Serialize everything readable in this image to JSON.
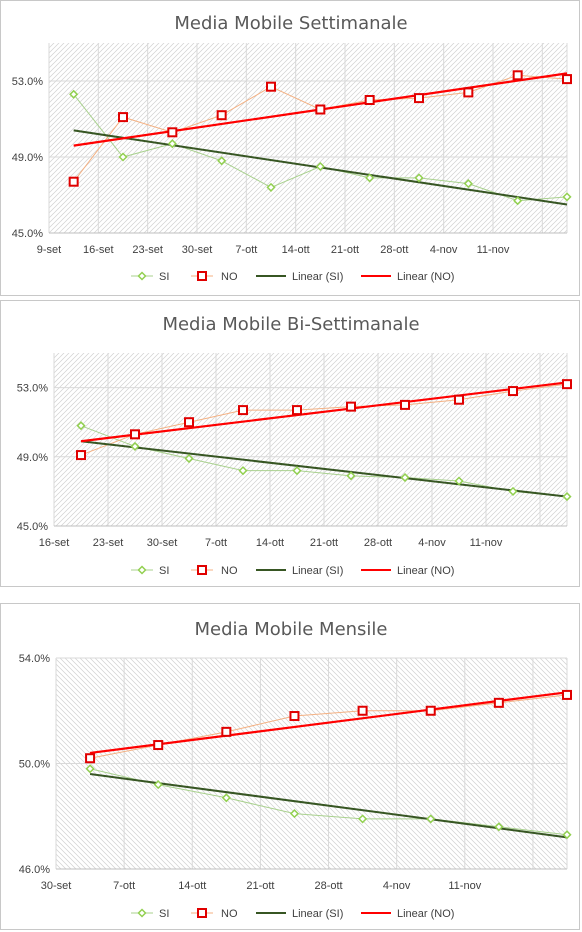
{
  "colors": {
    "si_line": "#a9d18e",
    "si_marker": "#92d050",
    "no_line": "#f4b183",
    "no_marker": "#e00000",
    "trend_si": "#375623",
    "trend_no": "#ff0000",
    "grid": "#d9d9d9",
    "hatch": "#d0d0d0"
  },
  "chart_data": [
    {
      "type": "line",
      "title": "Media Mobile Settimanale",
      "categories": [
        "9-set",
        "16-set",
        "23-set",
        "30-set",
        "7-ott",
        "14-ott",
        "21-ott",
        "28-ott",
        "4-nov",
        "11-nov",
        ""
      ],
      "tick_labels": [
        "9-set",
        "16-set",
        "23-set",
        "30-set",
        "7-ott",
        "14-ott",
        "21-ott",
        "28-ott",
        "4-nov",
        "11-nov"
      ],
      "ylim": [
        45,
        55
      ],
      "yticks": [
        45,
        49,
        53
      ],
      "ytick_labels": [
        "45.0%",
        "49.0%",
        "53.0%"
      ],
      "hatch": "right",
      "series": [
        {
          "name": "SI",
          "values": [
            52.3,
            49.0,
            49.7,
            48.8,
            47.4,
            48.5,
            47.9,
            47.9,
            47.6,
            46.7,
            46.9
          ]
        },
        {
          "name": "NO",
          "values": [
            47.7,
            51.1,
            50.3,
            51.2,
            52.7,
            51.5,
            52.0,
            52.1,
            52.4,
            53.3,
            53.1
          ]
        }
      ],
      "trends": [
        {
          "name": "Linear (SI)",
          "start": 50.4,
          "end": 46.5
        },
        {
          "name": "Linear (NO)",
          "start": 49.6,
          "end": 53.4
        }
      ],
      "legend": [
        "SI",
        "NO",
        "Linear (SI)",
        "Linear (NO)"
      ],
      "legend_position": "bottom"
    },
    {
      "type": "line",
      "title": "Media Mobile Bi-Settimanale",
      "categories": [
        "16-set",
        "23-set",
        "30-set",
        "7-ott",
        "14-ott",
        "21-ott",
        "28-ott",
        "4-nov",
        "11-nov",
        ""
      ],
      "tick_labels": [
        "16-set",
        "23-set",
        "30-set",
        "7-ott",
        "14-ott",
        "21-ott",
        "28-ott",
        "4-nov",
        "11-nov"
      ],
      "ylim": [
        45,
        55
      ],
      "yticks": [
        45,
        49,
        53
      ],
      "ytick_labels": [
        "45.0%",
        "49.0%",
        "53.0%"
      ],
      "hatch": "right",
      "series": [
        {
          "name": "SI",
          "values": [
            50.8,
            49.6,
            48.9,
            48.2,
            48.2,
            47.9,
            47.8,
            47.6,
            47.0,
            46.7
          ]
        },
        {
          "name": "NO",
          "values": [
            49.1,
            50.3,
            51.0,
            51.7,
            51.7,
            51.9,
            52.0,
            52.3,
            52.8,
            53.2
          ]
        }
      ],
      "trends": [
        {
          "name": "Linear (SI)",
          "start": 49.9,
          "end": 46.7
        },
        {
          "name": "Linear (NO)",
          "start": 49.9,
          "end": 53.3
        }
      ],
      "legend": [
        "SI",
        "NO",
        "Linear (SI)",
        "Linear (NO)"
      ],
      "legend_position": "bottom"
    },
    {
      "type": "line",
      "title": "Media Mobile Mensile",
      "categories": [
        "30-set",
        "7-ott",
        "14-ott",
        "21-ott",
        "28-ott",
        "4-nov",
        "11-nov",
        ""
      ],
      "tick_labels": [
        "30-set",
        "7-ott",
        "14-ott",
        "21-ott",
        "28-ott",
        "4-nov",
        "11-nov"
      ],
      "ylim": [
        46,
        54
      ],
      "yticks": [
        46,
        50,
        54
      ],
      "ytick_labels": [
        "46.0%",
        "50.0%",
        "54.0%"
      ],
      "hatch": "left",
      "series": [
        {
          "name": "SI",
          "values": [
            49.8,
            49.2,
            48.7,
            48.1,
            47.9,
            47.9,
            47.6,
            47.3
          ]
        },
        {
          "name": "NO",
          "values": [
            50.2,
            50.7,
            51.2,
            51.8,
            52.0,
            52.0,
            52.3,
            52.6
          ]
        }
      ],
      "trends": [
        {
          "name": "Linear (SI)",
          "start": 49.6,
          "end": 47.2
        },
        {
          "name": "Linear (NO)",
          "start": 50.4,
          "end": 52.7
        }
      ],
      "legend": [
        "SI",
        "NO",
        "Linear (SI)",
        "Linear (NO)"
      ],
      "legend_position": "bottom"
    }
  ]
}
